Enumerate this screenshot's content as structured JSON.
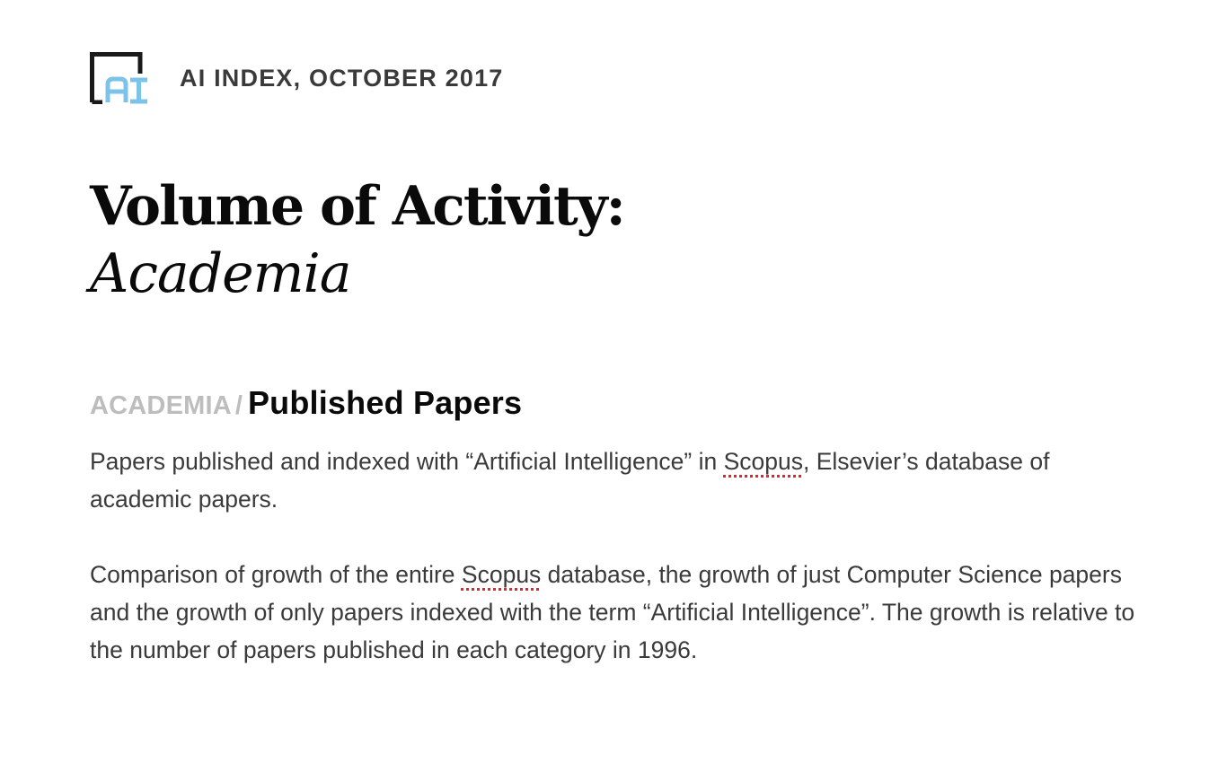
{
  "header": {
    "logo_text": "AI",
    "title": "AI INDEX, OCTOBER 2017"
  },
  "page_title": {
    "line1": "Volume of Activity:",
    "line2": "Academia"
  },
  "section": {
    "breadcrumb": "ACADEMIA",
    "separator": "/",
    "title": "Published Papers"
  },
  "paragraphs": {
    "p1_before": "Papers published and indexed with “Artificial Intelligence” in ",
    "p1_flagged": "Scopus",
    "p1_after": ", Elsevier’s database of academic papers.",
    "p2_before": "Comparison of growth of the entire ",
    "p2_flagged": "Scopus",
    "p2_after": " database, the growth of just Computer Science papers and the growth of only papers indexed with the term “Artificial Intelligence”. The growth is relative to the number of papers published in each category in 1996."
  },
  "colors": {
    "logo_bracket": "#1a1a1a",
    "logo_letters": "#7cc3ea",
    "spellcheck": "#e0252b",
    "breadcrumb": "#bdbdbd",
    "body_text": "#3a3a3a"
  }
}
